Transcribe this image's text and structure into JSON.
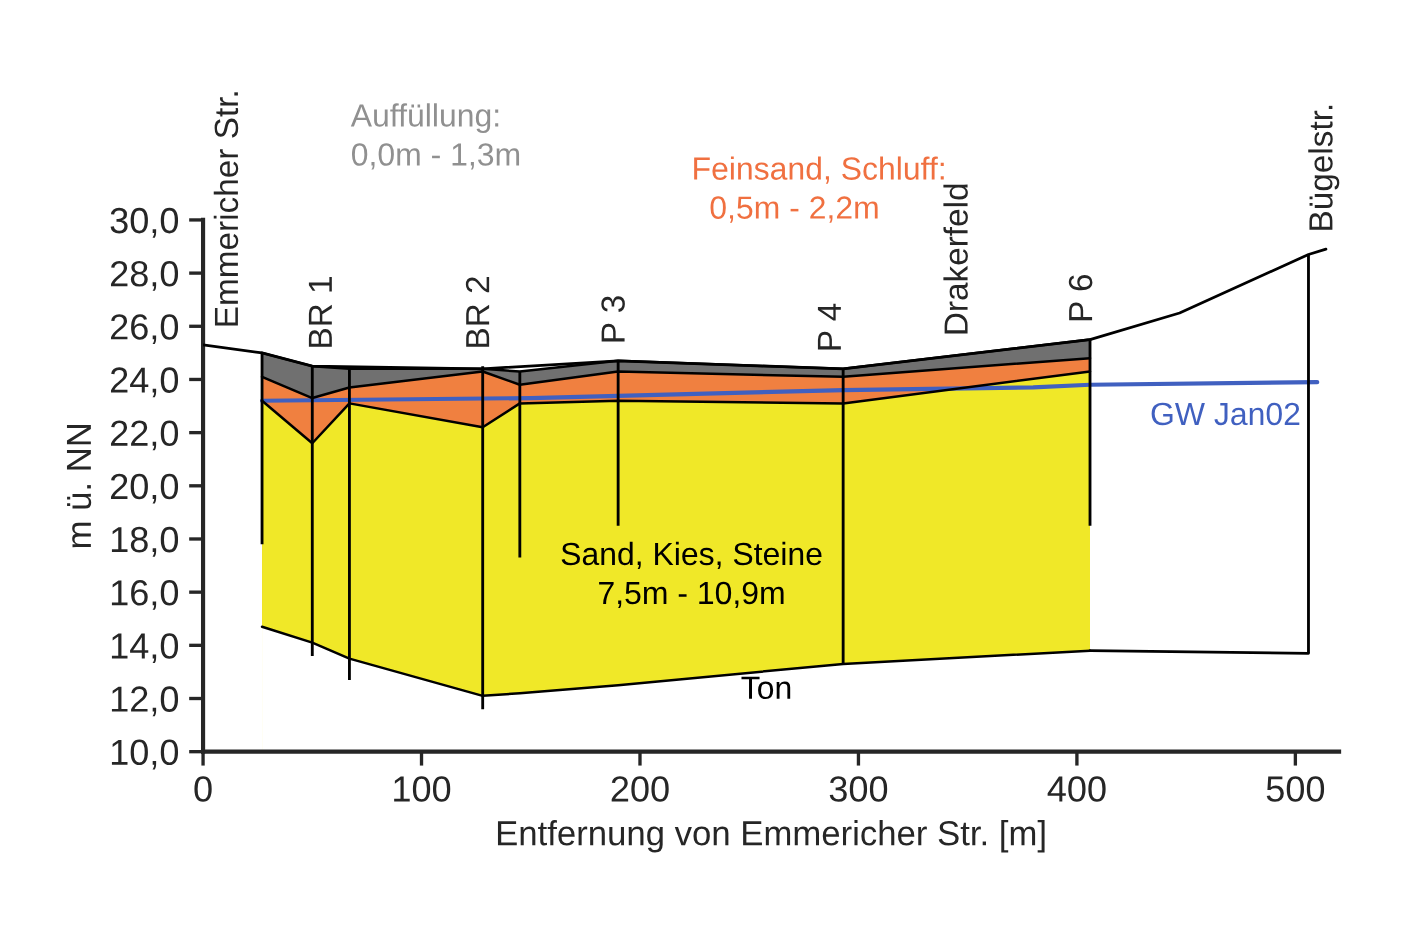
{
  "chart_data": {
    "type": "area",
    "xlabel": "Entfernung von Emmericher Str. [m]",
    "ylabel": "m ü. NN",
    "xlim": [
      0,
      520
    ],
    "ylim": [
      10,
      30
    ],
    "xticks": [
      0,
      100,
      200,
      300,
      400,
      500
    ],
    "yticks": [
      {
        "value": 10,
        "label": "10,0"
      },
      {
        "value": 12,
        "label": "12,0"
      },
      {
        "value": 14,
        "label": "14,0"
      },
      {
        "value": 16,
        "label": "16,0"
      },
      {
        "value": 18,
        "label": "18,0"
      },
      {
        "value": 20,
        "label": "20,0"
      },
      {
        "value": 22,
        "label": "22,0"
      },
      {
        "value": 24,
        "label": "24,0"
      },
      {
        "value": 26,
        "label": "26,0"
      },
      {
        "value": 28,
        "label": "28,0"
      },
      {
        "value": 30,
        "label": "30,0"
      }
    ],
    "grid": false,
    "legend": false,
    "series": [
      {
        "color": "#707070",
        "x": [
          27,
          50,
          67,
          128,
          145,
          190,
          293,
          406
        ],
        "values": [
          25.0,
          24.5,
          24.4,
          24.4,
          24.3,
          24.7,
          24.4,
          25.5
        ]
      },
      {
        "color": "#f08040",
        "x": [
          27,
          50,
          67,
          128,
          145,
          190,
          293,
          406
        ],
        "values": [
          24.1,
          23.3,
          23.7,
          24.3,
          23.8,
          24.3,
          24.1,
          24.8
        ]
      },
      {
        "color": "#f0e828",
        "x": [
          27,
          50,
          67,
          128,
          145,
          190,
          293,
          406
        ],
        "values": [
          23.2,
          21.6,
          23.1,
          22.2,
          23.1,
          23.2,
          23.1,
          24.3
        ]
      },
      {
        "color": "#ffffff",
        "x": [
          27,
          50,
          67,
          128,
          145,
          190,
          293,
          406
        ],
        "values": [
          14.7,
          14.1,
          13.5,
          12.1,
          12.2,
          12.5,
          13.3,
          13.8
        ]
      },
      {
        "type": "line",
        "color": "#000000",
        "x": [
          0,
          27,
          50,
          128,
          190,
          293,
          406,
          447,
          506,
          514
        ],
        "values": [
          25.3,
          25.0,
          24.5,
          24.4,
          24.7,
          24.4,
          25.5,
          26.5,
          28.7,
          28.9
        ]
      },
      {
        "type": "line",
        "color": "#000000",
        "x": [
          406,
          506
        ],
        "values": [
          13.8,
          13.7
        ]
      },
      {
        "type": "line",
        "color": "#4060c0",
        "x": [
          27,
          150,
          293,
          380,
          406,
          510
        ],
        "values": [
          23.2,
          23.3,
          23.6,
          23.7,
          23.8,
          23.9
        ]
      },
      {
        "type": "bar",
        "color": "#000000",
        "x": [
          27,
          50,
          67,
          128,
          145,
          190,
          293,
          406,
          506
        ],
        "base": [
          17.8,
          13.6,
          12.7,
          11.6,
          17.3,
          18.5,
          13.3,
          18.5,
          13.7
        ],
        "values": [
          7.2,
          10.9,
          11.7,
          12.9,
          7.0,
          6.2,
          11.1,
          7.0,
          15.0
        ]
      }
    ],
    "annotations": [
      {
        "text": "Emmericher Str.",
        "x": 12,
        "y": 25.3
      },
      {
        "text": "BR 1",
        "x": 55,
        "y": 24.5
      },
      {
        "text": "BR 2",
        "x": 127,
        "y": 24.5
      },
      {
        "text": "P 3",
        "x": 189,
        "y": 24.7
      },
      {
        "text": "P 4",
        "x": 288,
        "y": 24.4
      },
      {
        "text": "Drakerfeld",
        "x": 346,
        "y": 25.0
      },
      {
        "text": "P 6",
        "x": 403,
        "y": 25.5
      },
      {
        "text": "Bügelstr.",
        "x": 513,
        "y": 28.9
      },
      "Auffüllung:\n0,0m - 1,3m",
      "Feinsand, Schluff:\n  0,5m - 2,2m",
      "Sand, Kies, Steine\n7,5m - 10,9m",
      "Ton",
      "GW Jan02"
    ]
  }
}
